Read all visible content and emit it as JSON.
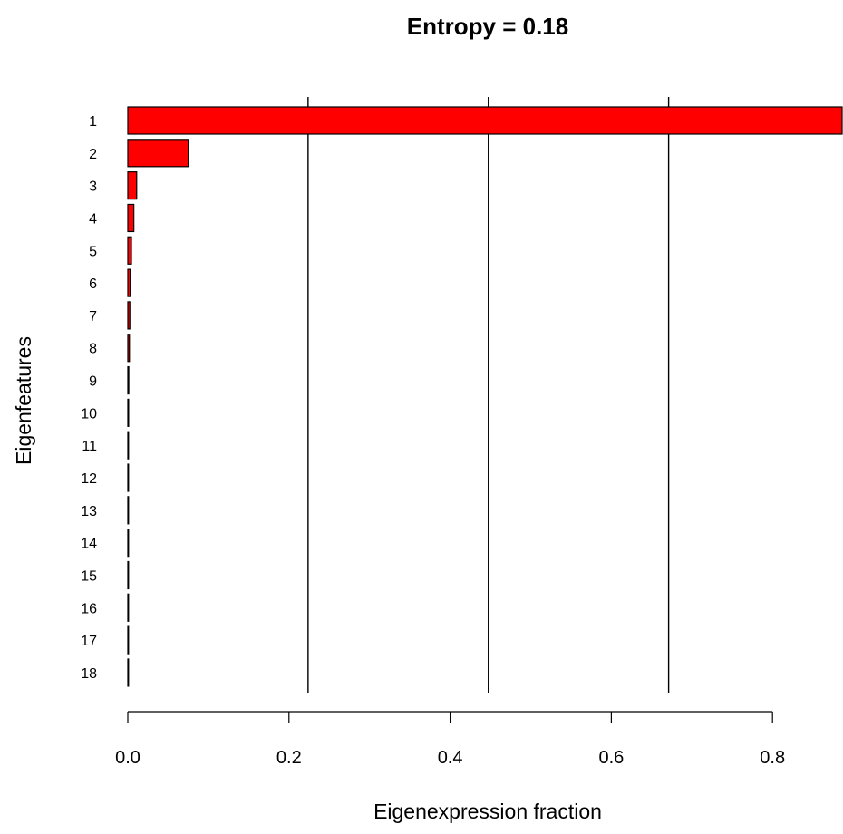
{
  "chart_data": {
    "type": "bar",
    "orientation": "horizontal",
    "title": "Entropy = 0.18",
    "xlabel": "Eigenexpression fraction",
    "ylabel": "Eigenfeatures",
    "categories": [
      "1",
      "2",
      "3",
      "4",
      "5",
      "6",
      "7",
      "8",
      "9",
      "10",
      "11",
      "12",
      "13",
      "14",
      "15",
      "16",
      "17",
      "18"
    ],
    "values": [
      0.895,
      0.075,
      0.011,
      0.0075,
      0.0045,
      0.003,
      0.0025,
      0.002,
      0.0012,
      0.001,
      0.0008,
      0.0007,
      0.0006,
      0.0005,
      0.0005,
      0.0004,
      0.0003,
      0.0002
    ],
    "xlim": [
      0,
      0.8
    ],
    "xticks": [
      0.0,
      0.2,
      0.4,
      0.6,
      0.8
    ],
    "xtick_labels": [
      "0.0",
      "0.2",
      "0.4",
      "0.6",
      "0.8"
    ],
    "vertical_lines": [
      0.2237,
      0.4474,
      0.6711
    ],
    "bar_color": "#ff0000",
    "bar_edge_color": "#000000",
    "grid": false,
    "legend": "none"
  }
}
